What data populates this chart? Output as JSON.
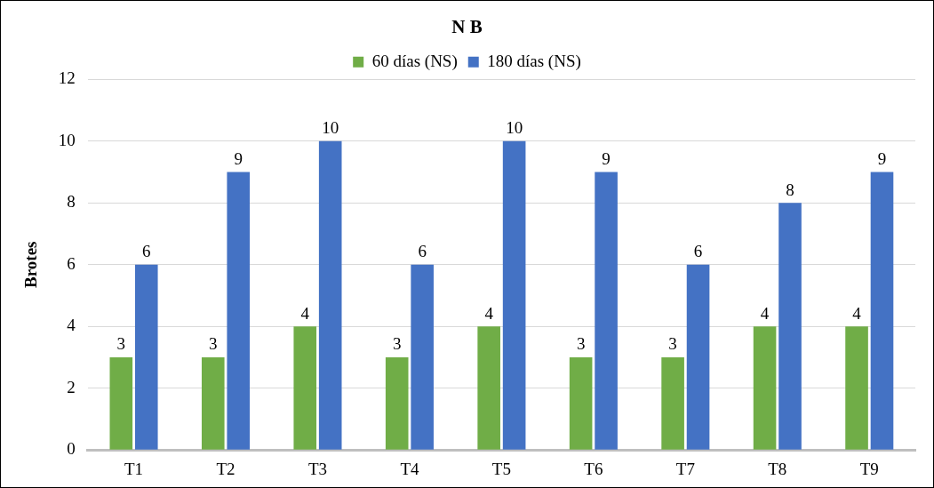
{
  "chart_data": {
    "type": "bar",
    "title": "N B",
    "categories": [
      "T1",
      "T2",
      "T3",
      "T4",
      "T5",
      "T6",
      "T7",
      "T8",
      "T9"
    ],
    "series": [
      {
        "name": "60 días (NS)",
        "color": "#70ad47",
        "values": [
          3,
          3,
          4,
          3,
          4,
          3,
          3,
          4,
          4
        ]
      },
      {
        "name": "180 días (NS)",
        "color": "#4472c4",
        "values": [
          6,
          9,
          10,
          6,
          10,
          9,
          6,
          8,
          9
        ]
      }
    ],
    "ylabel": "Brotes",
    "ylim": [
      0,
      12
    ],
    "yticks": [
      0,
      2,
      4,
      6,
      8,
      10,
      12
    ],
    "grid": "y",
    "legend": "top",
    "data_labels": true
  }
}
